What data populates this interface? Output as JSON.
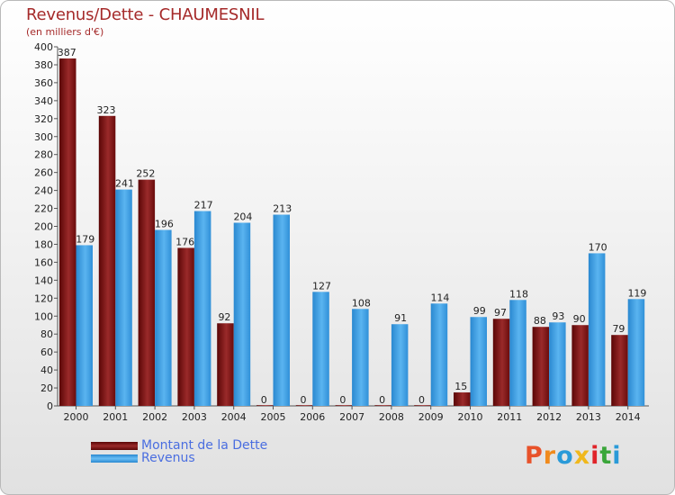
{
  "chart_data": {
    "type": "bar",
    "title": "Revenus/Dette - CHAUMESNIL",
    "subtitle": "(en milliers d'€)",
    "categories": [
      "2000",
      "2001",
      "2002",
      "2003",
      "2004",
      "2005",
      "2006",
      "2007",
      "2008",
      "2009",
      "2010",
      "2011",
      "2012",
      "2013",
      "2014"
    ],
    "series": [
      {
        "name": "Montant de la Dette",
        "color": "#8b1a1a",
        "values": [
          387,
          323,
          252,
          176,
          92,
          0,
          0,
          0,
          0,
          0,
          15,
          97,
          88,
          90,
          79
        ]
      },
      {
        "name": "Revenus",
        "color": "#3b9ee0",
        "values": [
          179,
          241,
          196,
          217,
          204,
          213,
          127,
          108,
          91,
          114,
          99,
          118,
          93,
          170,
          119
        ]
      }
    ],
    "ylim": [
      0,
      400
    ],
    "ytick_step": 20,
    "grid": false,
    "legend_position": "bottom-left"
  },
  "logo": {
    "letters": [
      "P",
      "r",
      "o",
      "x",
      "i",
      "t",
      "i"
    ],
    "colors": [
      "#e8522a",
      "#f08a1c",
      "#2a9ad8",
      "#f0b81c",
      "#e0242a",
      "#3aa63a",
      "#2a9ad8"
    ]
  }
}
